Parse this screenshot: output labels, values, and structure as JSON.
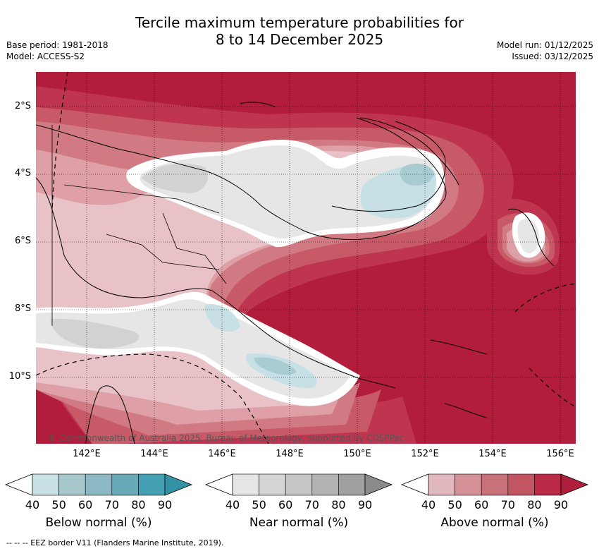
{
  "title_line1": "Tercile maximum temperature probabilities for",
  "title_line2": "8 to 14 December 2025",
  "base_period": "Base period: 1981-2018",
  "model": "Model: ACCESS-S2",
  "model_run": "Model run: 01/12/2025",
  "issued": "Issued: 03/12/2025",
  "copyright": "© Commonwealth of Australia 2025, Bureau of Meteorology, supported by COSPPac",
  "footer": "--  --  -- EEZ border V11 (Flanders Marine Institute, 2019).",
  "lat_ticks": [
    "2°S",
    "4°S",
    "6°S",
    "8°S",
    "10°S"
  ],
  "lon_ticks": [
    "142°E",
    "144°E",
    "146°E",
    "148°E",
    "150°E",
    "152°E",
    "154°E",
    "156°E"
  ],
  "colorbars": [
    {
      "label": "Below normal (%)",
      "ticks": [
        "40",
        "50",
        "60",
        "70",
        "80",
        "90"
      ],
      "colors": [
        "#c9e0e5",
        "#a8c7cc",
        "#8bb8c2",
        "#6aa9b7",
        "#45a0b3",
        "#3592a5"
      ]
    },
    {
      "label": "Near normal (%)",
      "ticks": [
        "40",
        "50",
        "60",
        "70",
        "80",
        "90"
      ],
      "colors": [
        "#e5e5e5",
        "#d4d4d4",
        "#c6c6c6",
        "#b3b3b3",
        "#a0a0a0",
        "#8a8a8a"
      ]
    },
    {
      "label": "Above normal (%)",
      "ticks": [
        "40",
        "50",
        "60",
        "70",
        "80",
        "90"
      ],
      "colors": [
        "#e2b8bf",
        "#d59198",
        "#c97179",
        "#c15562",
        "#b82a45",
        "#b01e3d"
      ]
    }
  ],
  "map_colors": {
    "above_90": "#b21d3b",
    "above_80": "#bf3550",
    "above_70": "#c85a68",
    "above_60": "#d17a84",
    "above_50": "#de9fa6",
    "above_40": "#e9c2c7",
    "near_40": "#e6e6e6",
    "near_50": "#d2d2d2",
    "below_40": "#c7e0e5",
    "below_50": "#a9cbd2",
    "coast": "#000000"
  }
}
